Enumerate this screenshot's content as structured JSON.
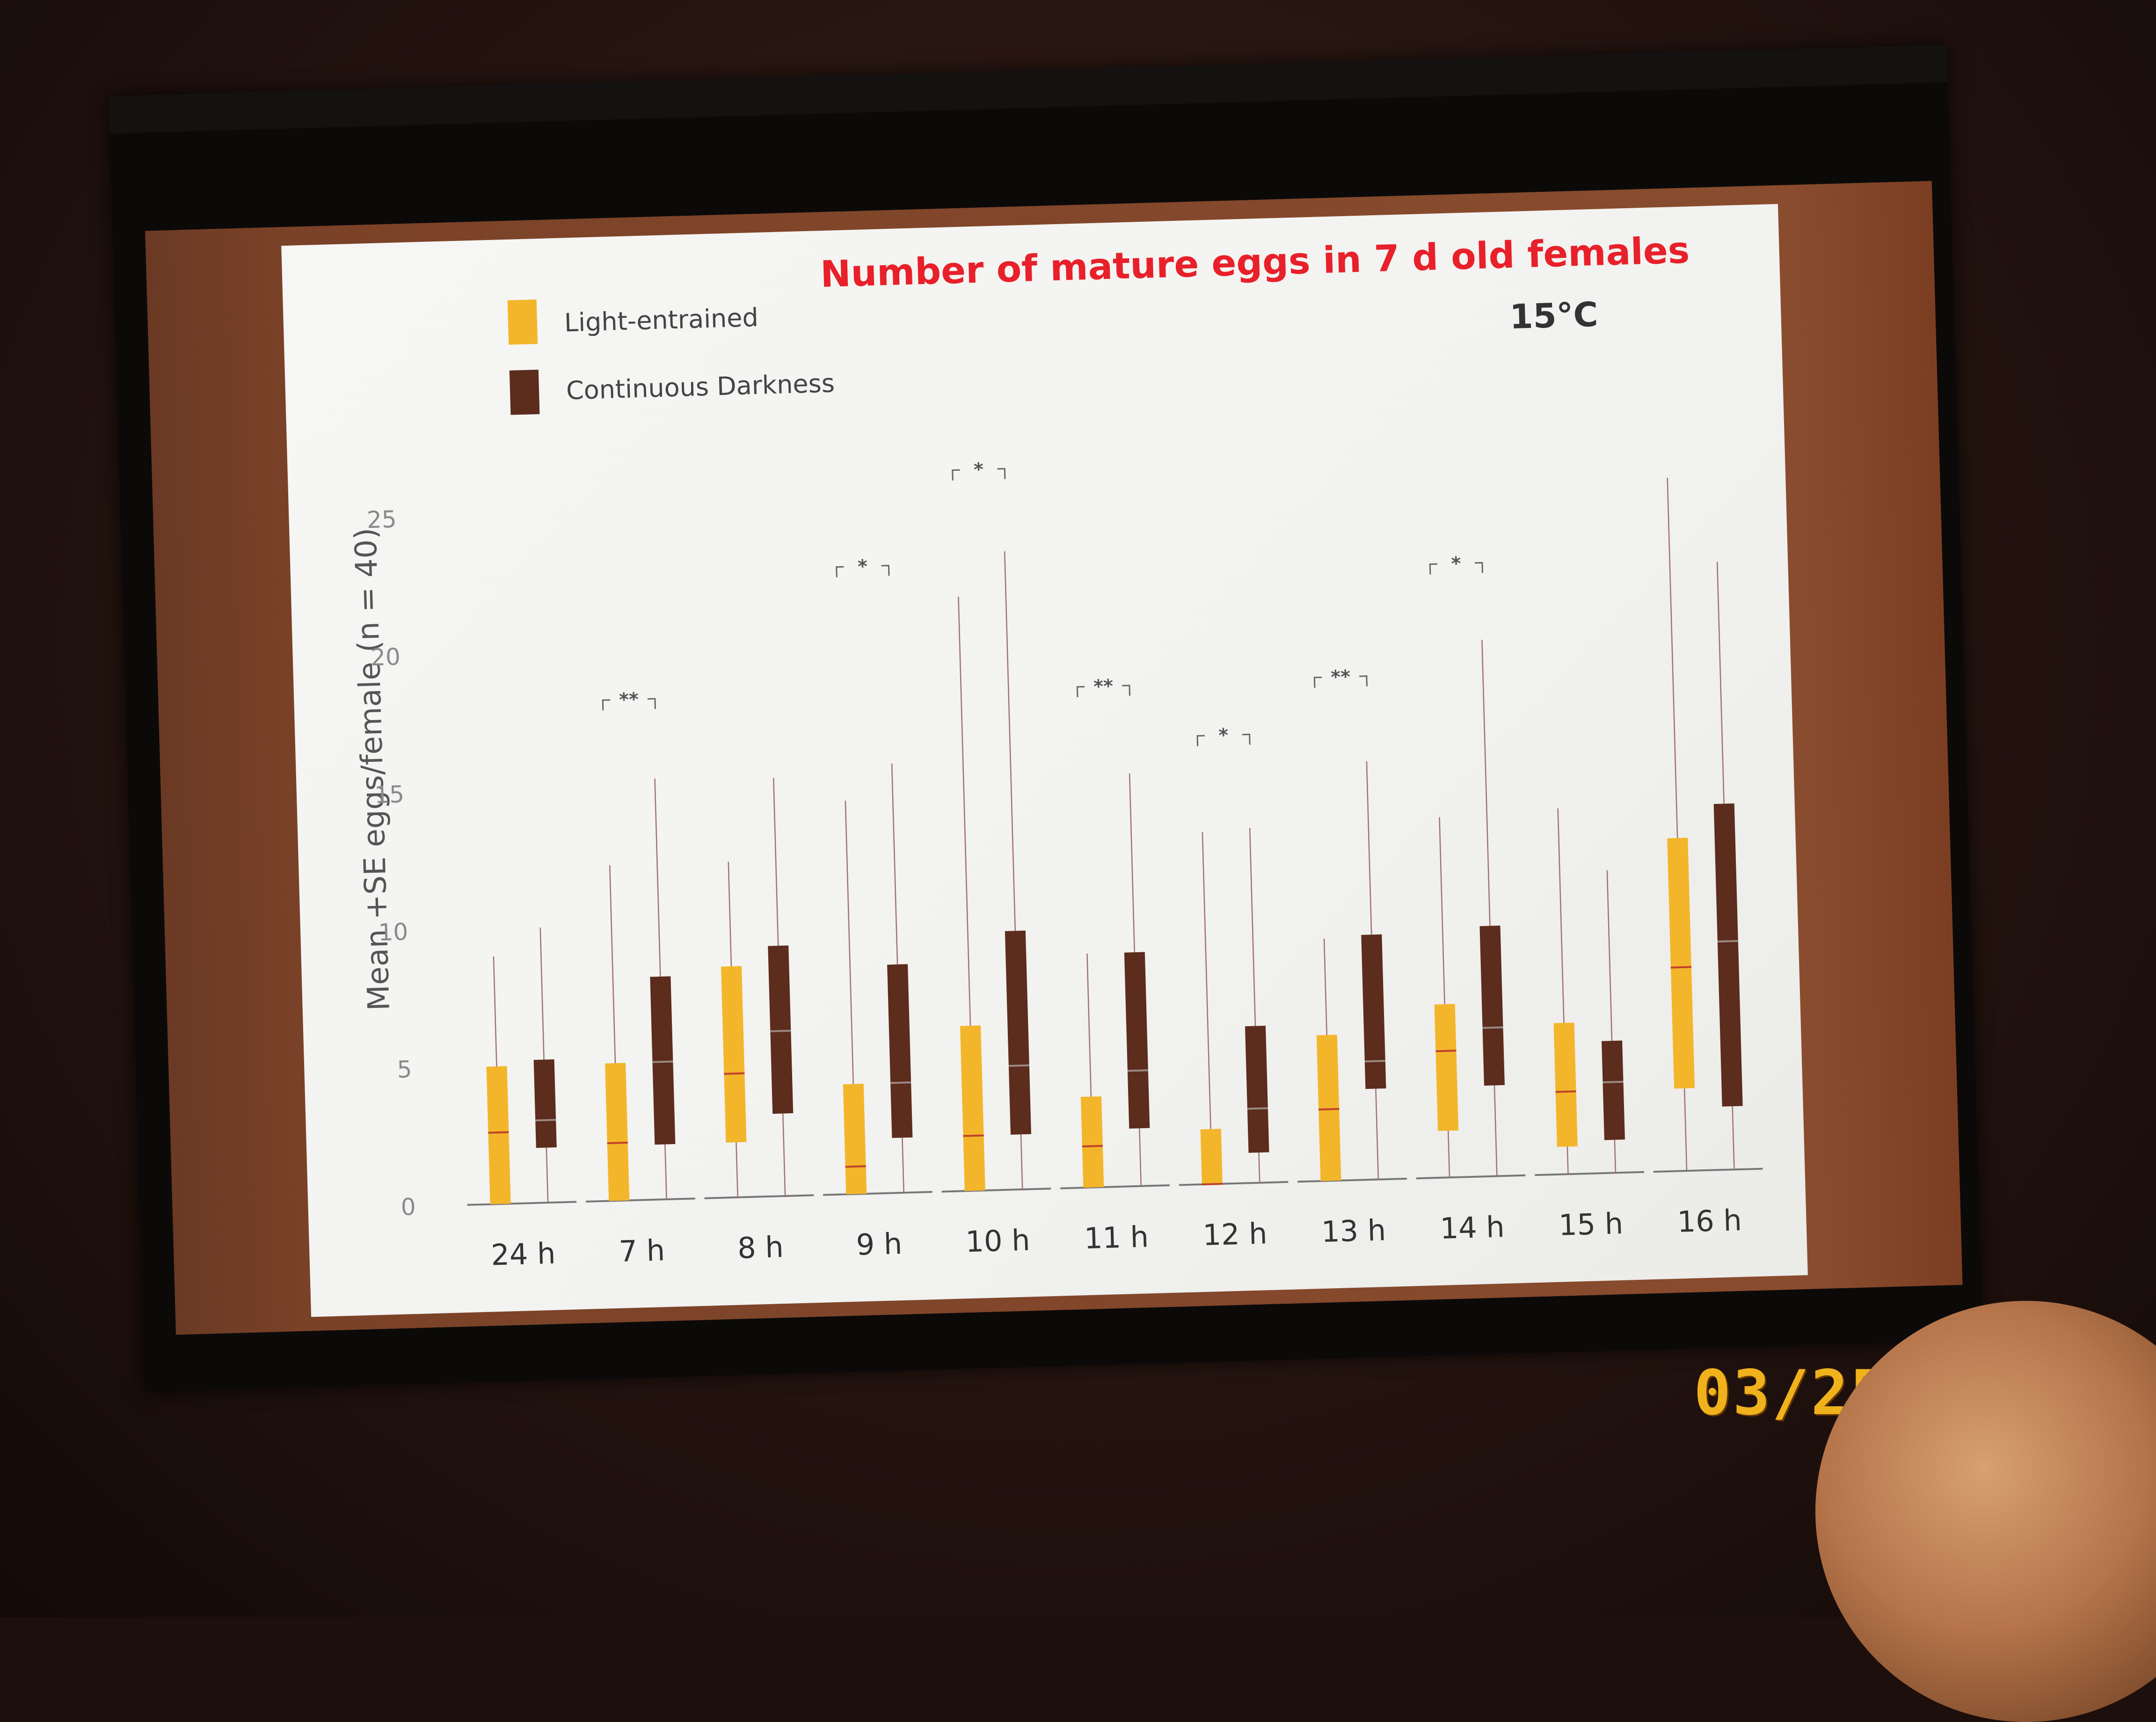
{
  "slide": {
    "title": "Number of mature eggs in 7 d old females",
    "temperature": "15°C"
  },
  "photo": {
    "date_stamp": "03/25/2015"
  },
  "colors": {
    "light": "#f3b62b",
    "dark": "#5c2c1c",
    "title": "#e8202a"
  },
  "chart_data": {
    "type": "box",
    "title": "Number of mature eggs in 7 d old females",
    "ylabel": "Mean +SE eggs/female (n = 40)",
    "xlabel": "",
    "ylim": [
      0,
      25
    ],
    "yticks": [
      0,
      5,
      10,
      15,
      20,
      25
    ],
    "categories": [
      "24 h",
      "7 h",
      "8 h",
      "9 h",
      "10 h",
      "11 h",
      "12 h",
      "13 h",
      "14 h",
      "15 h",
      "16 h"
    ],
    "legend": [
      {
        "name": "Light-entrained",
        "color": "#f3b62b"
      },
      {
        "name": "Continuous Darkness",
        "color": "#5c2c1c"
      }
    ],
    "series": [
      {
        "name": "Light-entrained",
        "whisker_low": [
          0,
          0,
          0,
          0,
          0,
          0,
          0,
          0,
          0,
          0,
          0
        ],
        "q1": [
          0,
          0,
          2,
          0,
          0,
          0,
          0,
          0,
          1.7,
          1,
          3
        ],
        "median": [
          2.6,
          2.1,
          4.5,
          1,
          2,
          1.5,
          0,
          2.6,
          4.6,
          3,
          7.4
        ],
        "q3": [
          5,
          5,
          8.4,
          4,
          6,
          3.3,
          2,
          5.3,
          6.3,
          5.5,
          12.1
        ],
        "whisker_high": [
          9,
          12.2,
          12.2,
          14.3,
          21.6,
          8.5,
          12.8,
          8.8,
          13.1,
          13.3,
          25.2
        ]
      },
      {
        "name": "Continuous Darkness",
        "whisker_low": [
          0,
          0,
          0,
          0,
          0,
          0,
          0,
          0,
          0,
          0,
          0
        ],
        "q1": [
          2,
          2,
          3,
          2,
          2,
          2.1,
          1.1,
          3.3,
          3.3,
          1.2,
          2.3
        ],
        "median": [
          3,
          5,
          6,
          4,
          4.5,
          4.2,
          2.7,
          4.3,
          5.4,
          3.3,
          8.3
        ],
        "q3": [
          5.2,
          8.1,
          9.1,
          8.3,
          9.4,
          8.5,
          5.7,
          8.9,
          9.1,
          4.8,
          13.3
        ],
        "whisker_high": [
          10,
          15.3,
          15.2,
          15.6,
          23.2,
          15,
          12.9,
          15.2,
          19.5,
          11,
          22.1
        ]
      }
    ],
    "significance": [
      {
        "category": "7 h",
        "label": "**",
        "y": 18.2
      },
      {
        "category": "9 h",
        "label": "*",
        "y": 22.8
      },
      {
        "category": "10 h",
        "label": "*",
        "y": 26.2
      },
      {
        "category": "11 h",
        "label": "**",
        "y": 18.2
      },
      {
        "category": "12 h",
        "label": "*",
        "y": 16.3
      },
      {
        "category": "13 h",
        "label": "**",
        "y": 18.3
      },
      {
        "category": "14 h",
        "label": "*",
        "y": 22.3
      }
    ]
  }
}
